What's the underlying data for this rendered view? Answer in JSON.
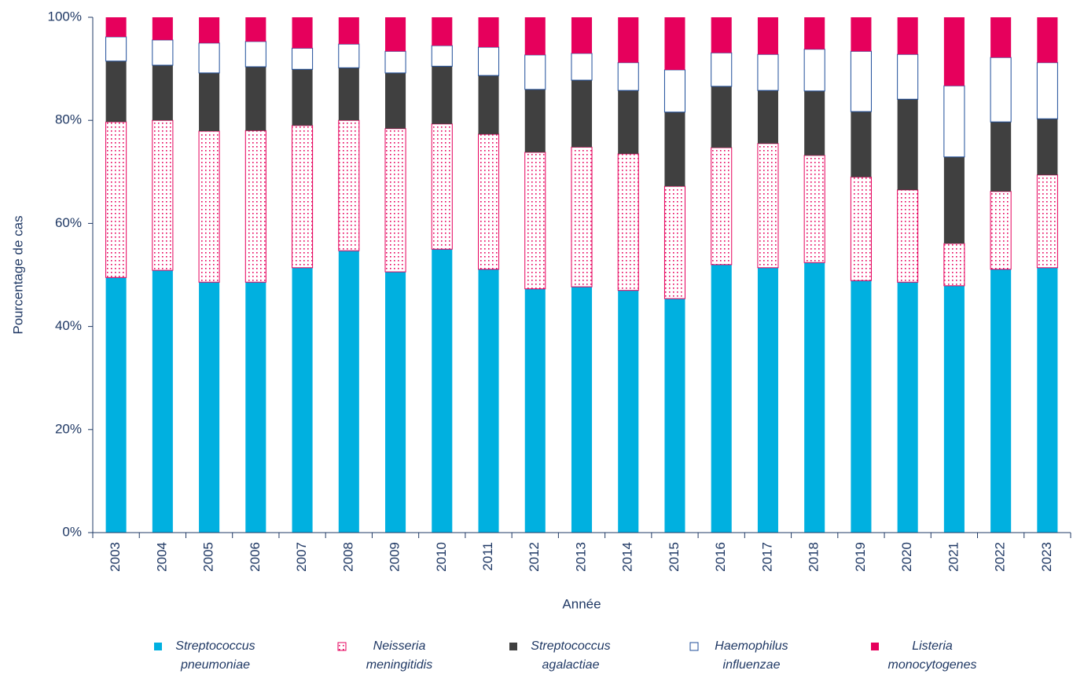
{
  "chart_data": {
    "type": "stacked_bar",
    "x_label": "Année",
    "y_label": "Pourcentage de cas",
    "categories": [
      "2003",
      "2004",
      "2005",
      "2006",
      "2007",
      "2008",
      "2009",
      "2010",
      "2011",
      "2012",
      "2013",
      "2014",
      "2015",
      "2016",
      "2017",
      "2018",
      "2019",
      "2020",
      "2021",
      "2022",
      "2023"
    ],
    "series": [
      {
        "name": "Streptococcus pneumoniae",
        "color": "#00b0e0",
        "values": [
          49.5,
          50.9,
          48.6,
          48.6,
          51.4,
          54.7,
          50.6,
          55.0,
          51.1,
          47.3,
          47.7,
          47.0,
          45.4,
          52.0,
          51.4,
          52.4,
          48.9,
          48.6,
          47.9,
          51.1,
          51.4
        ]
      },
      {
        "name": "Neisseria meningitidis",
        "color": "#e6005c",
        "hatch": "dots",
        "values": [
          30.2,
          29.1,
          29.3,
          29.4,
          27.6,
          25.3,
          27.8,
          24.3,
          26.2,
          26.5,
          27.1,
          26.5,
          21.8,
          22.7,
          24.1,
          20.8,
          20.1,
          17.9,
          8.2,
          15.1,
          18.0
        ]
      },
      {
        "name": "Streptococcus agalactiae",
        "color": "#404040",
        "values": [
          11.8,
          10.7,
          11.3,
          12.4,
          10.9,
          10.2,
          10.8,
          11.2,
          11.4,
          12.2,
          13.0,
          12.3,
          14.4,
          11.9,
          10.3,
          12.5,
          12.7,
          17.6,
          16.8,
          13.5,
          10.9
        ]
      },
      {
        "name": "Haemophilus influenzae",
        "color": "#ffffff",
        "stroke": "#1f4e9a",
        "values": [
          4.7,
          4.9,
          5.8,
          4.9,
          4.1,
          4.6,
          4.2,
          4.0,
          5.5,
          6.7,
          5.2,
          5.4,
          8.2,
          6.5,
          7.0,
          8.1,
          11.7,
          8.7,
          13.8,
          12.5,
          10.9
        ]
      },
      {
        "name": "Listeria monocytogenes",
        "color": "#e6005c",
        "values": [
          3.8,
          4.4,
          5.0,
          4.7,
          6.0,
          5.2,
          6.6,
          5.5,
          5.8,
          7.3,
          7.0,
          8.8,
          10.2,
          6.9,
          7.2,
          6.2,
          6.6,
          7.2,
          13.3,
          7.8,
          8.8
        ]
      }
    ],
    "ylim": [
      0,
      100
    ],
    "yticks": [
      {
        "value": 0,
        "label": "0%"
      },
      {
        "value": 20,
        "label": "20%"
      },
      {
        "value": 40,
        "label": "40%"
      },
      {
        "value": 60,
        "label": "60%"
      },
      {
        "value": 80,
        "label": "80%"
      },
      {
        "value": 100,
        "label": "100%"
      }
    ],
    "legend": "bottom"
  }
}
